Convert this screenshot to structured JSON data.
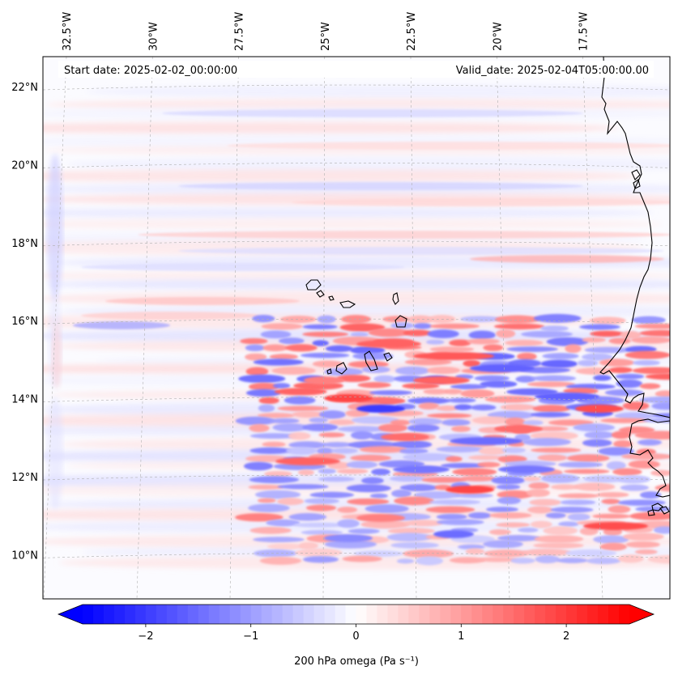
{
  "map": {
    "title_left": "Start date: 2025-02-02_00:00:00",
    "title_right": "Valid_date: 2025-02-04T05:00:00.00",
    "extent": {
      "lon_min": -33.0,
      "lon_max": -16.0,
      "lat_min": 8.8,
      "lat_max": 22.8
    },
    "longitude_labels": [
      {
        "lon": -32.5,
        "text": "32.5°W"
      },
      {
        "lon": -30.0,
        "text": "30°W"
      },
      {
        "lon": -27.5,
        "text": "27.5°W"
      },
      {
        "lon": -25.0,
        "text": "25°W"
      },
      {
        "lon": -22.5,
        "text": "22.5°W"
      },
      {
        "lon": -20.0,
        "text": "20°W"
      },
      {
        "lon": -17.5,
        "text": "17.5°W"
      }
    ],
    "latitude_labels": [
      {
        "lat": 22,
        "text": "22°N"
      },
      {
        "lat": 20,
        "text": "20°N"
      },
      {
        "lat": 18,
        "text": "18°N"
      },
      {
        "lat": 16,
        "text": "16°N"
      },
      {
        "lat": 14,
        "text": "14°N"
      },
      {
        "lat": 12,
        "text": "12°N"
      },
      {
        "lat": 10,
        "text": "10°N"
      }
    ],
    "field_name": "200 hPa omega",
    "units": "Pa s⁻¹"
  },
  "colorbar": {
    "label": "200 hPa omega (Pa s$^{-1}$)",
    "label_display": "200 hPa omega (Pa s⁻¹)",
    "min": -2.6,
    "max": 2.6,
    "ticks": [
      {
        "value": -2,
        "text": "−2"
      },
      {
        "value": -1,
        "text": "−1"
      },
      {
        "value": 0,
        "text": "0"
      },
      {
        "value": 1,
        "text": "1"
      },
      {
        "value": 2,
        "text": "2"
      }
    ],
    "color_low": "#0000ff",
    "color_mid": "#ffffff",
    "color_high": "#ff0000",
    "extend": "both"
  },
  "features": {
    "coastline_color": "#000000",
    "gridline_color": "#b0b0b0",
    "islands": [
      "Santo Antão",
      "São Vicente",
      "Santa Luzia",
      "São Nicolau",
      "Sal",
      "Boa Vista",
      "Maio",
      "Santiago",
      "Fogo",
      "Brava"
    ]
  }
}
